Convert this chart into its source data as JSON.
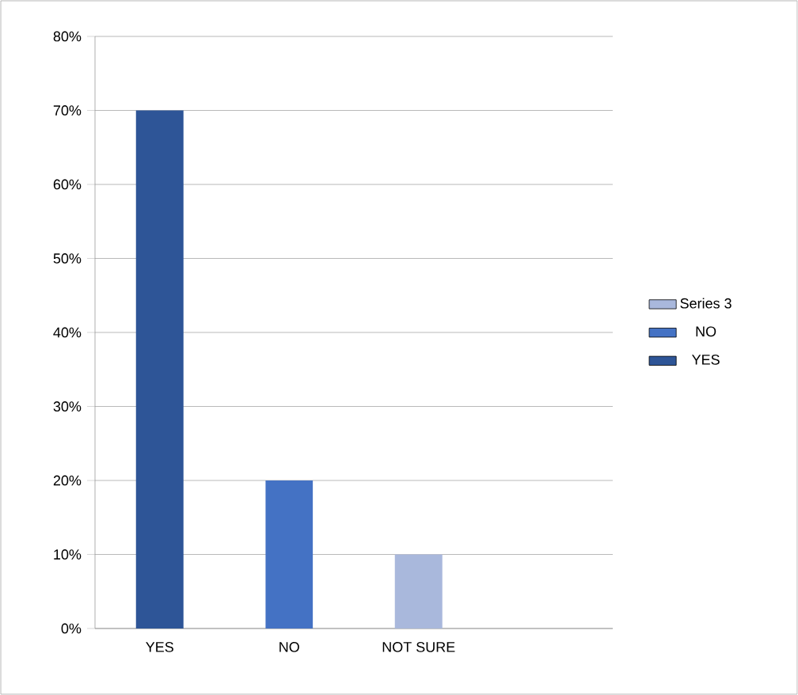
{
  "chart_data": {
    "type": "bar",
    "stacked": true,
    "categories": [
      "YES",
      "NO",
      "NOT SURE",
      null
    ],
    "series": [
      {
        "name": "YES",
        "color": "#2e5597",
        "values": [
          70,
          null,
          null,
          null
        ]
      },
      {
        "name": "NO",
        "color": "#4472c4",
        "values": [
          null,
          20,
          null,
          null
        ]
      },
      {
        "name": "Series 3",
        "color": "#a9b8dc",
        "values": [
          null,
          null,
          10,
          null
        ]
      }
    ],
    "ylim": [
      0,
      80
    ],
    "yticks": [
      {
        "value": 0,
        "label": "0%"
      },
      {
        "value": 10,
        "label": "10%"
      },
      {
        "value": 20,
        "label": "20%"
      },
      {
        "value": 30,
        "label": "30%"
      },
      {
        "value": 40,
        "label": "40%"
      },
      {
        "value": 50,
        "label": "50%"
      },
      {
        "value": 60,
        "label": "60%"
      },
      {
        "value": 70,
        "label": "70%"
      },
      {
        "value": 80,
        "label": "80%"
      }
    ],
    "grid": "y",
    "legend": "right"
  }
}
